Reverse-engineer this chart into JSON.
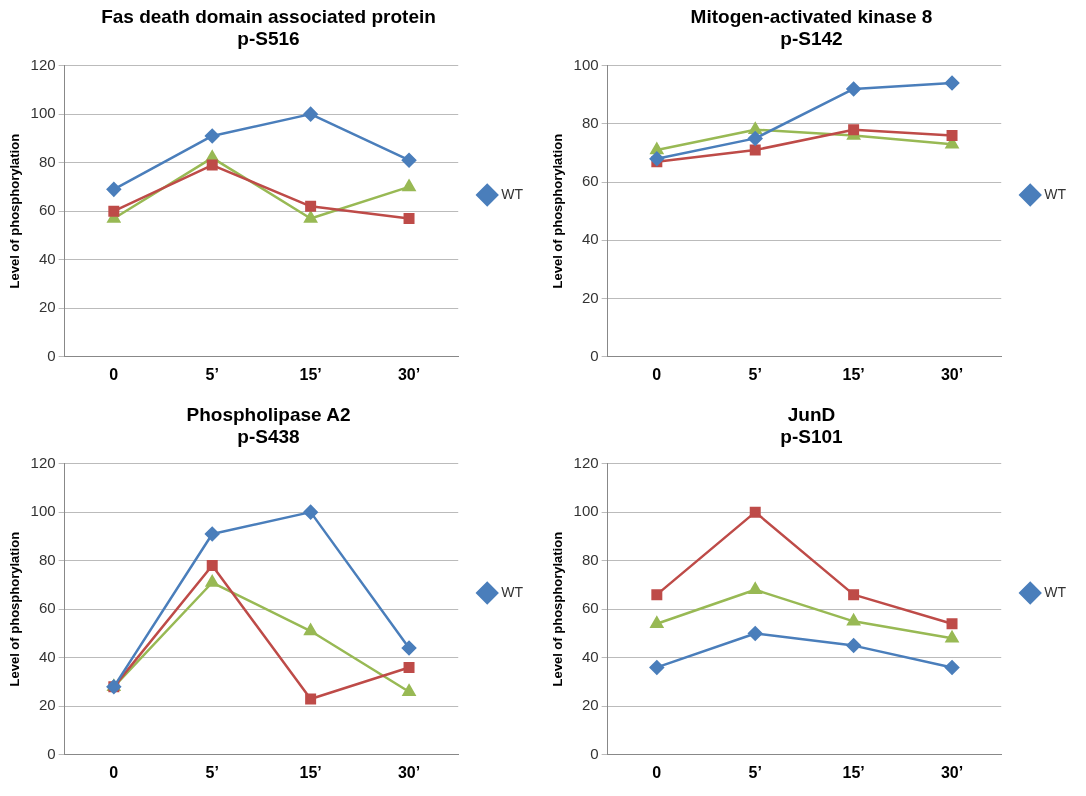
{
  "chart_data": [
    {
      "type": "line",
      "title": "Fas death domain associated protein",
      "subtitle": "p-S516",
      "ylabel": "Level of phosphorylation",
      "categories": [
        "0",
        "5’",
        "15’",
        "30’"
      ],
      "ylim": [
        0,
        120
      ],
      "yticks": [
        0,
        20,
        40,
        60,
        80,
        100,
        120
      ],
      "grid": "y",
      "legend": "right",
      "series": [
        {
          "name": "WT",
          "color": "#4a7ebb",
          "marker": "diamond",
          "values": [
            69,
            91,
            100,
            81
          ]
        },
        {
          "color": "#be4b48",
          "marker": "square",
          "values": [
            60,
            79,
            62,
            57
          ]
        },
        {
          "color": "#98b954",
          "marker": "triangle",
          "values": [
            57,
            82,
            57,
            70
          ]
        }
      ]
    },
    {
      "type": "line",
      "title": "Mitogen-activated kinase 8",
      "subtitle": "p-S142",
      "ylabel": "Level of phosphorylation",
      "categories": [
        "0",
        "5’",
        "15’",
        "30’"
      ],
      "ylim": [
        0,
        100
      ],
      "yticks": [
        0,
        20,
        40,
        60,
        80,
        100
      ],
      "grid": "y",
      "legend": "right",
      "series": [
        {
          "name": "WT",
          "color": "#4a7ebb",
          "marker": "diamond",
          "values": [
            68,
            75,
            92,
            94
          ]
        },
        {
          "color": "#be4b48",
          "marker": "square",
          "values": [
            67,
            71,
            78,
            76
          ]
        },
        {
          "color": "#98b954",
          "marker": "triangle",
          "values": [
            71,
            78,
            76,
            73
          ]
        }
      ]
    },
    {
      "type": "line",
      "title": "Phospholipase A2",
      "subtitle": "p-S438",
      "ylabel": "Level of phosphorylation",
      "categories": [
        "0",
        "5’",
        "15’",
        "30’"
      ],
      "ylim": [
        0,
        120
      ],
      "yticks": [
        0,
        20,
        40,
        60,
        80,
        100,
        120
      ],
      "grid": "y",
      "legend": "right",
      "series": [
        {
          "name": "WT",
          "color": "#4a7ebb",
          "marker": "diamond",
          "values": [
            28,
            91,
            100,
            44
          ]
        },
        {
          "color": "#be4b48",
          "marker": "square",
          "values": [
            28,
            78,
            23,
            36
          ]
        },
        {
          "color": "#98b954",
          "marker": "triangle",
          "values": [
            28,
            71,
            51,
            26
          ]
        }
      ]
    },
    {
      "type": "line",
      "title": "JunD",
      "subtitle": "p-S101",
      "ylabel": "Level of phosphorylation",
      "categories": [
        "0",
        "5’",
        "15’",
        "30’"
      ],
      "ylim": [
        0,
        120
      ],
      "yticks": [
        0,
        20,
        40,
        60,
        80,
        100,
        120
      ],
      "grid": "y",
      "legend": "right",
      "series": [
        {
          "name": "WT",
          "color": "#4a7ebb",
          "marker": "diamond",
          "values": [
            36,
            50,
            45,
            36
          ]
        },
        {
          "color": "#be4b48",
          "marker": "square",
          "values": [
            66,
            100,
            66,
            54
          ]
        },
        {
          "color": "#98b954",
          "marker": "triangle",
          "values": [
            54,
            68,
            55,
            48
          ]
        }
      ]
    }
  ]
}
